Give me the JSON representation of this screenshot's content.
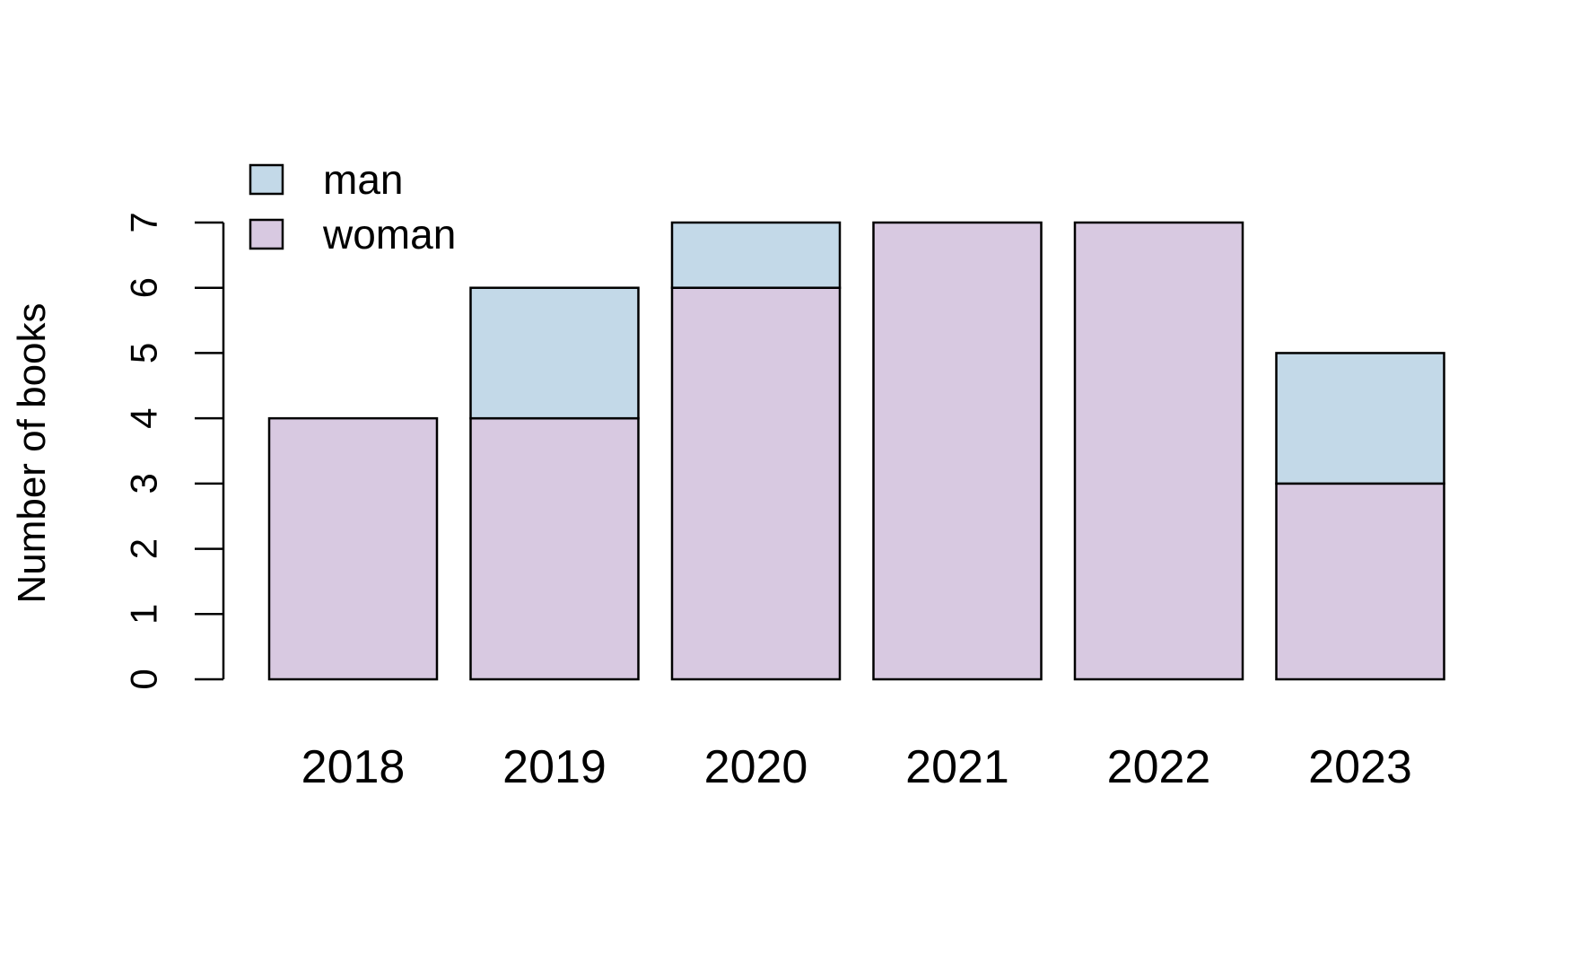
{
  "chart_data": {
    "type": "bar",
    "stacked": true,
    "categories": [
      "2018",
      "2019",
      "2020",
      "2021",
      "2022",
      "2023"
    ],
    "series": [
      {
        "name": "woman",
        "values": [
          4,
          4,
          6,
          7,
          7,
          3
        ],
        "color": "#d8c9e1"
      },
      {
        "name": "man",
        "values": [
          0,
          2,
          1,
          0,
          0,
          2
        ],
        "color": "#c3d9e8"
      }
    ],
    "title": "",
    "xlabel": "",
    "ylabel": "Number of books",
    "yticks": [
      "0",
      "1",
      "2",
      "3",
      "4",
      "5",
      "6",
      "7"
    ],
    "ylim": [
      0,
      7
    ],
    "grid": false,
    "legend": {
      "position": "top-left",
      "entries": [
        "man",
        "woman"
      ]
    }
  }
}
